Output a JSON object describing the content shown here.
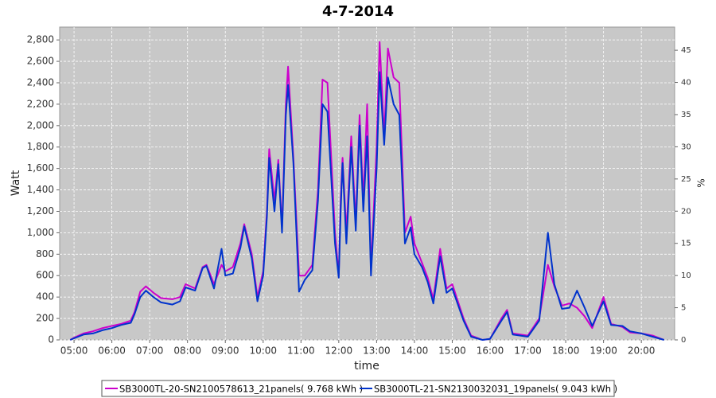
{
  "chart_data": {
    "type": "line",
    "title": "4-7-2014",
    "xlabel": "time",
    "ylabel": "Watt",
    "y2label": "%",
    "x": [
      4.9,
      5.0,
      5.25,
      5.5,
      5.75,
      6.0,
      6.25,
      6.5,
      6.6,
      6.75,
      6.9,
      7.1,
      7.3,
      7.6,
      7.8,
      7.95,
      8.2,
      8.4,
      8.5,
      8.7,
      8.9,
      9.0,
      9.2,
      9.4,
      9.5,
      9.7,
      9.85,
      10.0,
      10.1,
      10.16,
      10.3,
      10.4,
      10.5,
      10.6,
      10.66,
      10.8,
      10.95,
      11.1,
      11.3,
      11.45,
      11.57,
      11.7,
      11.9,
      12.0,
      12.05,
      12.1,
      12.2,
      12.33,
      12.45,
      12.55,
      12.65,
      12.75,
      12.85,
      13.0,
      13.08,
      13.2,
      13.3,
      13.45,
      13.6,
      13.75,
      13.9,
      14.0,
      14.2,
      14.35,
      14.5,
      14.68,
      14.85,
      15.0,
      15.3,
      15.5,
      15.8,
      16.0,
      16.3,
      16.45,
      16.6,
      17.0,
      17.3,
      17.53,
      17.7,
      17.9,
      18.1,
      18.3,
      18.5,
      18.7,
      19.0,
      19.2,
      19.5,
      19.7,
      20.0,
      20.3,
      20.6
    ],
    "series": [
      {
        "name": "SB3000TL-20-SN2100578613_21panels( 9.768 kWh )",
        "color": "#cc00cc",
        "values": [
          0,
          20,
          60,
          80,
          110,
          130,
          150,
          180,
          260,
          450,
          500,
          440,
          390,
          380,
          400,
          520,
          480,
          680,
          700,
          520,
          700,
          640,
          680,
          900,
          1080,
          800,
          400,
          640,
          1200,
          1780,
          1300,
          1680,
          1050,
          2200,
          2550,
          1700,
          600,
          600,
          700,
          1400,
          2430,
          2400,
          1000,
          600,
          1300,
          1700,
          1000,
          1900,
          1100,
          2100,
          1300,
          2200,
          650,
          1800,
          2780,
          1900,
          2720,
          2450,
          2400,
          1000,
          1150,
          900,
          720,
          580,
          380,
          850,
          480,
          520,
          200,
          40,
          0,
          10,
          200,
          280,
          60,
          40,
          200,
          700,
          500,
          320,
          340,
          300,
          220,
          110,
          400,
          150,
          120,
          70,
          60,
          40,
          0
        ]
      },
      {
        "name": "SB3000TL-21-SN2130032031_19panels( 9.043 kWh )",
        "color": "#0033cc",
        "values": [
          0,
          15,
          50,
          60,
          90,
          110,
          140,
          160,
          240,
          400,
          460,
          400,
          350,
          330,
          360,
          490,
          460,
          670,
          690,
          480,
          850,
          600,
          620,
          860,
          1060,
          760,
          360,
          600,
          1150,
          1700,
          1200,
          1640,
          1000,
          2100,
          2380,
          1650,
          450,
          560,
          650,
          1300,
          2200,
          2130,
          900,
          580,
          1200,
          1650,
          900,
          1800,
          1020,
          2000,
          1200,
          1900,
          600,
          1600,
          2500,
          1820,
          2450,
          2200,
          2100,
          900,
          1050,
          800,
          680,
          540,
          340,
          780,
          440,
          480,
          180,
          30,
          0,
          10,
          180,
          260,
          50,
          30,
          180,
          1000,
          520,
          290,
          300,
          460,
          300,
          130,
          360,
          140,
          130,
          80,
          60,
          30,
          0
        ]
      }
    ],
    "xlim": [
      4.62,
      20.88
    ],
    "xticks": [
      {
        "value": 5,
        "label": "05:00"
      },
      {
        "value": 6,
        "label": "06:00"
      },
      {
        "value": 7,
        "label": "07:00"
      },
      {
        "value": 8,
        "label": "08:00"
      },
      {
        "value": 9,
        "label": "09:00"
      },
      {
        "value": 10,
        "label": "10:00"
      },
      {
        "value": 11,
        "label": "11:00"
      },
      {
        "value": 12,
        "label": "12:00"
      },
      {
        "value": 13,
        "label": "13:00"
      },
      {
        "value": 14,
        "label": "14:00"
      },
      {
        "value": 15,
        "label": "15:00"
      },
      {
        "value": 16,
        "label": "16:00"
      },
      {
        "value": 17,
        "label": "17:00"
      },
      {
        "value": 18,
        "label": "18:00"
      },
      {
        "value": 19,
        "label": "19:00"
      },
      {
        "value": 20,
        "label": "20:00"
      }
    ],
    "ylim": [
      0,
      2920
    ],
    "yticks": [
      0,
      200,
      400,
      600,
      800,
      {
        "value": 1000,
        "label": "1,000"
      },
      {
        "value": 1200,
        "label": "1,200"
      },
      {
        "value": 1400,
        "label": "1,400"
      },
      {
        "value": 1600,
        "label": "1,600"
      },
      {
        "value": 1800,
        "label": "1,800"
      },
      {
        "value": 2000,
        "label": "2,000"
      },
      {
        "value": 2200,
        "label": "2,200"
      },
      {
        "value": 2400,
        "label": "2,400"
      },
      {
        "value": 2600,
        "label": "2,600"
      },
      {
        "value": 2800,
        "label": "2,800"
      }
    ],
    "y2lim": [
      0,
      48.6
    ],
    "y2ticks": [
      0,
      5,
      10,
      15,
      20,
      25,
      30,
      35,
      40,
      45
    ],
    "grid": true
  }
}
